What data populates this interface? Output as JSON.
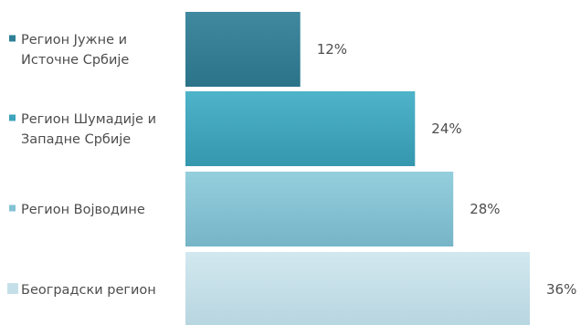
{
  "chart_data": {
    "type": "bar",
    "orientation": "horizontal",
    "categories": [
      [
        "Регион Јужне и",
        "Источне Србије"
      ],
      [
        "Регион Шумадије и",
        "Западне Србије"
      ],
      [
        "Регион Војводине"
      ],
      [
        "Београдски регион"
      ]
    ],
    "values": [
      12,
      24,
      28,
      36
    ],
    "value_labels": [
      "12%",
      "24%",
      "28%",
      "36%"
    ],
    "colors": [
      "#2e7f96",
      "#3ea3bb",
      "#83c2d3",
      "#c4dfe8"
    ],
    "xlim": [
      0,
      36
    ],
    "grid": false,
    "legend": "left"
  }
}
